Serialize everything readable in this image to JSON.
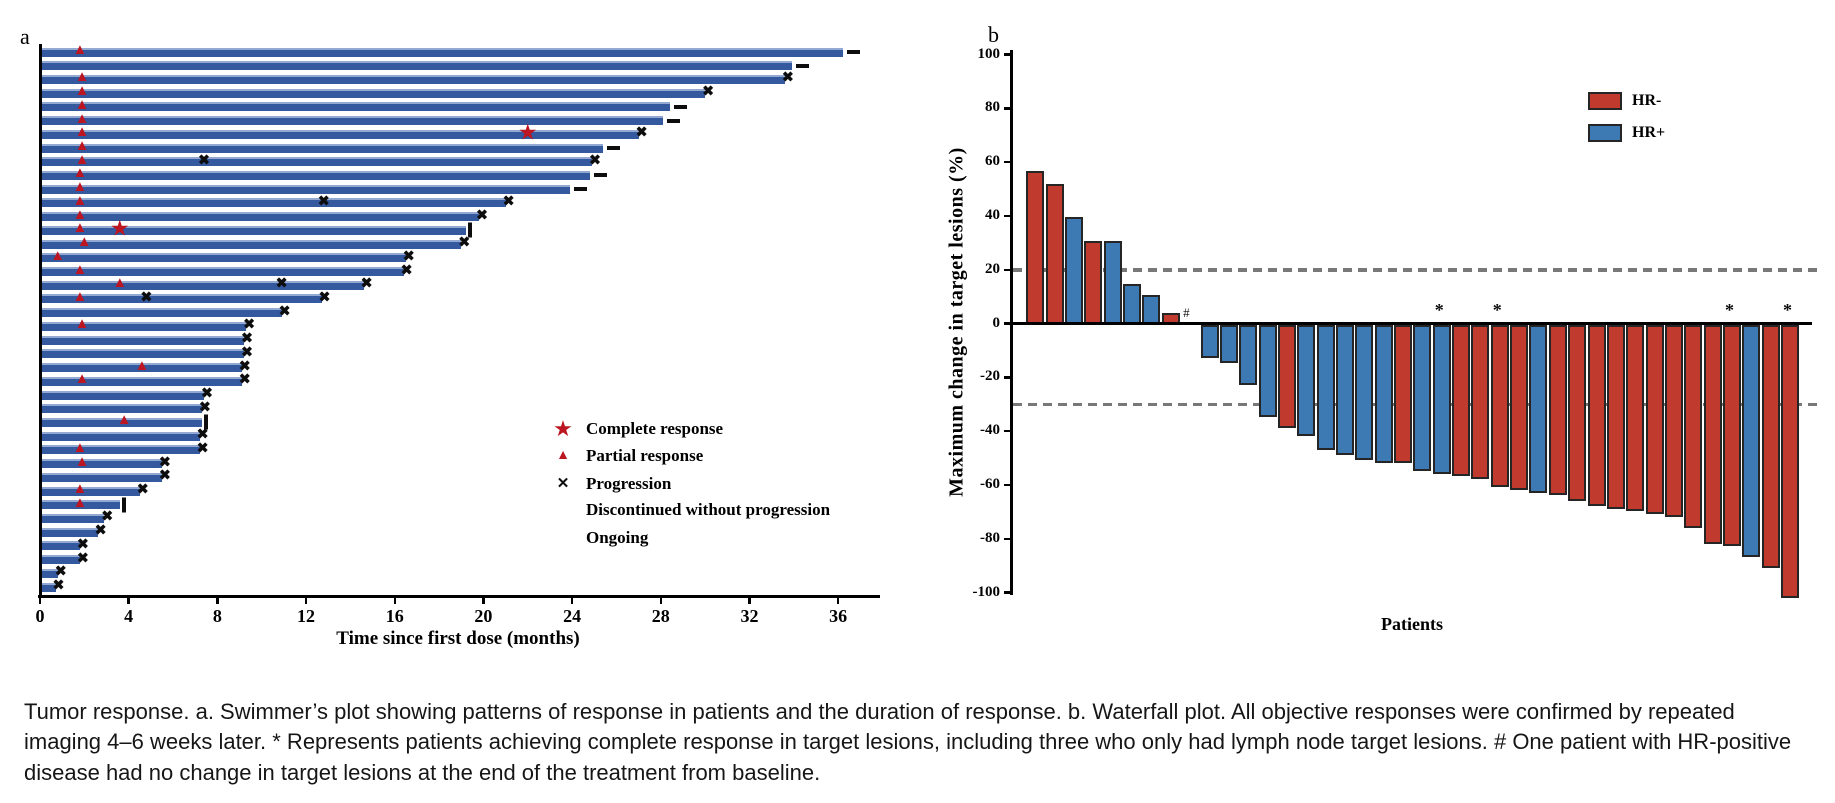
{
  "figure": {
    "panel_a_label": "a",
    "panel_b_label": "b"
  },
  "caption": "Tumor response. a. Swimmer’s plot showing patterns of response in patients and the duration of response. b. Waterfall plot. All objective responses were confirmed by repeated imaging 4–6 weeks later. * Represents patients achieving complete response in target lesions, including three who only had lymph node target lesions. # One patient with HR-positive disease had no change in target lesions at the end of the treatment from baseline.",
  "chart_data": [
    {
      "id": "swimmer_plot",
      "type": "bar",
      "orientation": "horizontal",
      "title": "",
      "xlabel": "Time since first dose (months)",
      "ylabel": "",
      "xlim": [
        0,
        37.8
      ],
      "x_ticks": [
        0,
        4,
        8,
        12,
        16,
        20,
        24,
        28,
        32,
        36
      ],
      "grid": false,
      "bar_color": "#35599f",
      "marker_color_red": "#bb1621",
      "marker_color_black": "#0d0d0d",
      "legend_position": "right-middle",
      "legend": [
        {
          "symbol": "star",
          "label": "Complete response"
        },
        {
          "symbol": "triangle",
          "label": "Partial response"
        },
        {
          "symbol": "cross",
          "label": "Progression"
        },
        {
          "symbol": "vbar",
          "label": "Discontinued without progression"
        },
        {
          "symbol": "dash",
          "label": "Ongoing"
        }
      ],
      "rows": [
        {
          "duration": 36.2,
          "end": "ongoing",
          "partial_response": 1.8
        },
        {
          "duration": 33.9,
          "end": "ongoing"
        },
        {
          "duration": 33.6,
          "end": "progression",
          "partial_response": 1.9
        },
        {
          "duration": 30.0,
          "end": "progression",
          "partial_response": 1.9
        },
        {
          "duration": 28.4,
          "end": "ongoing",
          "partial_response": 1.9
        },
        {
          "duration": 28.1,
          "end": "ongoing",
          "partial_response": 1.9
        },
        {
          "duration": 27.0,
          "end": "progression",
          "partial_response": 1.9,
          "complete_response": 22.0
        },
        {
          "duration": 25.4,
          "end": "ongoing",
          "partial_response": 1.9
        },
        {
          "duration": 24.9,
          "end": "progression",
          "partial_response": 1.9,
          "mid_progression": 7.4
        },
        {
          "duration": 24.8,
          "end": "ongoing",
          "partial_response": 1.8
        },
        {
          "duration": 23.9,
          "end": "ongoing",
          "partial_response": 1.8
        },
        {
          "duration": 21.0,
          "end": "progression",
          "partial_response": 1.8,
          "mid_progression": 12.8
        },
        {
          "duration": 19.8,
          "end": "progression",
          "partial_response": 1.8
        },
        {
          "duration": 19.2,
          "end": "discontinued",
          "partial_response": 1.8,
          "complete_response": 3.6
        },
        {
          "duration": 19.0,
          "end": "progression",
          "partial_response": 2.0
        },
        {
          "duration": 16.5,
          "end": "progression",
          "partial_response": 0.8
        },
        {
          "duration": 16.4,
          "end": "progression",
          "partial_response": 1.8
        },
        {
          "duration": 14.6,
          "end": "progression",
          "partial_response": 3.6,
          "mid_progression": 10.9
        },
        {
          "duration": 12.7,
          "end": "progression",
          "partial_response": 1.8,
          "mid_progression": 4.8
        },
        {
          "duration": 10.9,
          "end": "progression"
        },
        {
          "duration": 9.3,
          "end": "progression",
          "partial_response": 1.9
        },
        {
          "duration": 9.2,
          "end": "progression"
        },
        {
          "duration": 9.2,
          "end": "progression"
        },
        {
          "duration": 9.1,
          "end": "progression",
          "partial_response": 4.6
        },
        {
          "duration": 9.1,
          "end": "progression",
          "partial_response": 1.9
        },
        {
          "duration": 7.4,
          "end": "progression"
        },
        {
          "duration": 7.3,
          "end": "progression"
        },
        {
          "duration": 7.3,
          "end": "discontinued",
          "partial_response": 3.8
        },
        {
          "duration": 7.2,
          "end": "progression"
        },
        {
          "duration": 7.2,
          "end": "progression",
          "partial_response": 1.8
        },
        {
          "duration": 5.5,
          "end": "progression",
          "partial_response": 1.9
        },
        {
          "duration": 5.5,
          "end": "progression"
        },
        {
          "duration": 4.5,
          "end": "progression",
          "partial_response": 1.8
        },
        {
          "duration": 3.6,
          "end": "discontinued",
          "partial_response": 1.8
        },
        {
          "duration": 2.9,
          "end": "progression"
        },
        {
          "duration": 2.6,
          "end": "progression"
        },
        {
          "duration": 1.8,
          "end": "progression"
        },
        {
          "duration": 1.8,
          "end": "progression"
        },
        {
          "duration": 0.8,
          "end": "progression"
        },
        {
          "duration": 0.7,
          "end": "progression"
        }
      ]
    },
    {
      "id": "waterfall_plot",
      "type": "bar",
      "title": "",
      "xlabel": "Patients",
      "ylabel": "Maximum change in target lesions (%)",
      "ylim": [
        -100,
        100
      ],
      "y_ticks": [
        100,
        80,
        60,
        40,
        20,
        0,
        -20,
        -40,
        -60,
        -80,
        -100
      ],
      "grid": false,
      "threshold_lines": [
        20,
        -30
      ],
      "threshold_color": "#787878",
      "legend_position": "top-right",
      "legend": [
        {
          "label": "HR-",
          "color": "#c03b2d"
        },
        {
          "label": "HR+",
          "color": "#3d79b3"
        }
      ],
      "annotations": {
        "star_symbol": "*",
        "star_patients": [
          22,
          25,
          37,
          40
        ],
        "hash_symbol": "#",
        "hash_patient": 9
      },
      "patients": [
        {
          "n": 1,
          "value": 56,
          "group": "HR-"
        },
        {
          "n": 2,
          "value": 51,
          "group": "HR-"
        },
        {
          "n": 3,
          "value": 39,
          "group": "HR+"
        },
        {
          "n": 4,
          "value": 30,
          "group": "HR-"
        },
        {
          "n": 5,
          "value": 30,
          "group": "HR+"
        },
        {
          "n": 6,
          "value": 14,
          "group": "HR+"
        },
        {
          "n": 7,
          "value": 10,
          "group": "HR+"
        },
        {
          "n": 8,
          "value": 3,
          "group": "HR-"
        },
        {
          "n": 9,
          "value": 0,
          "group": "HR+"
        },
        {
          "n": 10,
          "value": -11,
          "group": "HR+"
        },
        {
          "n": 11,
          "value": -13,
          "group": "HR+"
        },
        {
          "n": 12,
          "value": -21,
          "group": "HR+"
        },
        {
          "n": 13,
          "value": -33,
          "group": "HR+"
        },
        {
          "n": 14,
          "value": -37,
          "group": "HR-"
        },
        {
          "n": 15,
          "value": -40,
          "group": "HR+"
        },
        {
          "n": 16,
          "value": -45,
          "group": "HR+"
        },
        {
          "n": 17,
          "value": -47,
          "group": "HR+"
        },
        {
          "n": 18,
          "value": -49,
          "group": "HR+"
        },
        {
          "n": 19,
          "value": -50,
          "group": "HR+"
        },
        {
          "n": 20,
          "value": -50,
          "group": "HR-"
        },
        {
          "n": 21,
          "value": -53,
          "group": "HR+"
        },
        {
          "n": 22,
          "value": -54,
          "group": "HR+"
        },
        {
          "n": 23,
          "value": -55,
          "group": "HR-"
        },
        {
          "n": 24,
          "value": -56,
          "group": "HR-"
        },
        {
          "n": 25,
          "value": -59,
          "group": "HR-"
        },
        {
          "n": 26,
          "value": -60,
          "group": "HR-"
        },
        {
          "n": 27,
          "value": -61,
          "group": "HR+"
        },
        {
          "n": 28,
          "value": -62,
          "group": "HR-"
        },
        {
          "n": 29,
          "value": -64,
          "group": "HR-"
        },
        {
          "n": 30,
          "value": -66,
          "group": "HR-"
        },
        {
          "n": 31,
          "value": -67,
          "group": "HR-"
        },
        {
          "n": 32,
          "value": -68,
          "group": "HR-"
        },
        {
          "n": 33,
          "value": -69,
          "group": "HR-"
        },
        {
          "n": 34,
          "value": -70,
          "group": "HR-"
        },
        {
          "n": 35,
          "value": -74,
          "group": "HR-"
        },
        {
          "n": 36,
          "value": -80,
          "group": "HR-"
        },
        {
          "n": 37,
          "value": -81,
          "group": "HR-"
        },
        {
          "n": 38,
          "value": -85,
          "group": "HR+"
        },
        {
          "n": 39,
          "value": -89,
          "group": "HR-"
        },
        {
          "n": 40,
          "value": -100,
          "group": "HR-"
        }
      ]
    }
  ]
}
